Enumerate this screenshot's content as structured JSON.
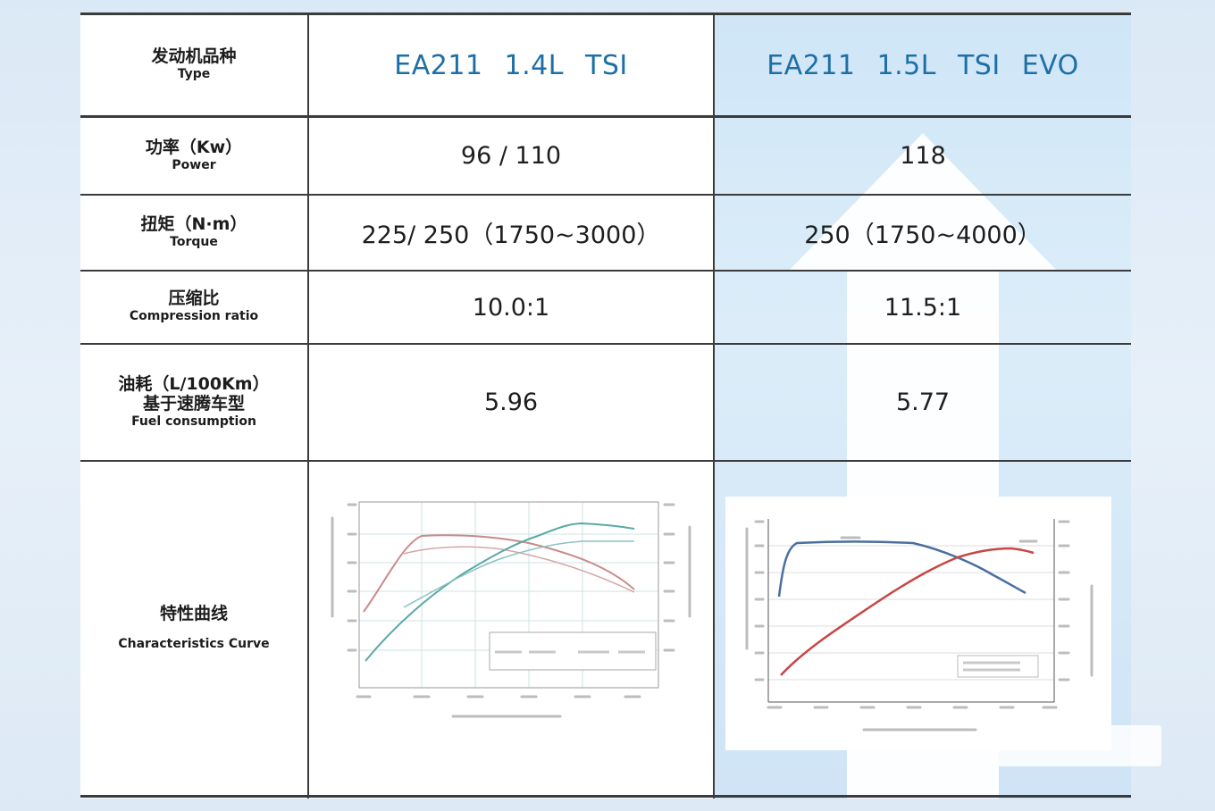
{
  "table": {
    "header": {
      "label_cn": "发动机品种",
      "label_en": "Type",
      "col1": "EA211 1.4L TSI",
      "col2": "EA211 1.5L TSI EVO"
    },
    "rows": [
      {
        "label_cn": "功率（Kw）",
        "label_en": "Power",
        "col1": "96 / 110",
        "col2": "118"
      },
      {
        "label_cn": "扭矩（N·m）",
        "label_en": "Torque",
        "col1": "225/ 250（1750~3000）",
        "col2": "250（1750~4000）"
      },
      {
        "label_cn": "压缩比",
        "label_en": "Compression ratio",
        "col1": "10.0:1",
        "col2": "11.5:1"
      },
      {
        "label_cn": "油耗（L/100Km）",
        "label_cn2": "基于速腾车型",
        "label_en": "Fuel consumption",
        "col1": "5.96",
        "col2": "5.77"
      },
      {
        "label_cn": "特性曲线",
        "label_en": "Characteristics Curve"
      }
    ]
  },
  "colors": {
    "header_text": "#1d6fa5",
    "evo_column": "#cfe6f7",
    "torque_curve_1": "#c98a8a",
    "power_curve_1": "#5aa8a8",
    "torque_curve_2": "#4a6fa0",
    "power_curve_2": "#c84646"
  }
}
